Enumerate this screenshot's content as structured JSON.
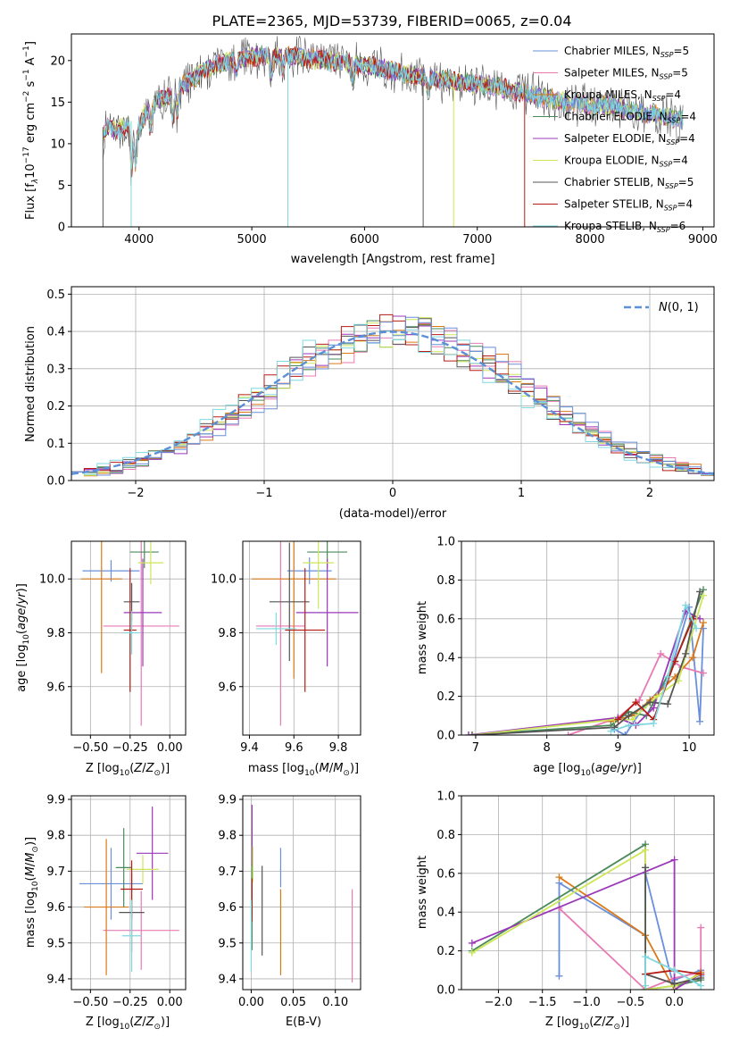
{
  "colors": {
    "series": [
      "#6a8fdb",
      "#e87ab4",
      "#d97a1a",
      "#4a8a5a",
      "#9a38b8",
      "#cde65a",
      "#555555",
      "#b51d14",
      "#7fd8e0"
    ],
    "gauss": "#5b8fd6",
    "grid": "#b0b0b0"
  },
  "figure": {
    "title": "PLATE=2365, MJD=53739, FIBERID=0065, z=0.04"
  },
  "chart_data": [
    {
      "type": "line",
      "id": "spectrum",
      "xlabel": "wavelength [Angstrom, rest frame]",
      "ylabel_parts": [
        "Flux [f",
        "λ",
        "10",
        "−17",
        " erg cm",
        "−2",
        " s",
        "−1",
        " A",
        "−1",
        "]"
      ],
      "xlim": [
        3400,
        9100
      ],
      "ylim": [
        0,
        23.2
      ],
      "xticks": [
        4000,
        5000,
        6000,
        7000,
        8000,
        9000
      ],
      "yticks": [
        0,
        5,
        10,
        15,
        20
      ],
      "grid": false,
      "legend_position": "top-right",
      "series": [
        {
          "name": "Chabrier MILES",
          "nssp": "5"
        },
        {
          "name": "Salpeter MILES",
          "nssp": "5"
        },
        {
          "name": "Kroupa MILES",
          "nssp": "4"
        },
        {
          "name": "Chabrier ELODIE",
          "nssp": "4"
        },
        {
          "name": "Salpeter ELODIE",
          "nssp": "4"
        },
        {
          "name": "Kroupa ELODIE",
          "nssp": "4"
        },
        {
          "name": "Chabrier STELIB",
          "nssp": "5"
        },
        {
          "name": "Salpeter STELIB",
          "nssp": "4"
        },
        {
          "name": "Kroupa STELIB",
          "nssp": "6"
        }
      ],
      "continuum": {
        "x": [
          3680,
          3720,
          3800,
          3900,
          3960,
          4050,
          4150,
          4300,
          4450,
          4600,
          4800,
          5000,
          5200,
          5500,
          5800,
          6100,
          6400,
          6600,
          6800,
          7000,
          7200,
          7500,
          7800,
          8000,
          8200,
          8400,
          8600,
          8750,
          8830
        ],
        "y": [
          11,
          12,
          11.5,
          12.5,
          11,
          13.5,
          15,
          16,
          17.5,
          19,
          20,
          20.5,
          20.7,
          20.3,
          19.8,
          19.2,
          18.3,
          17.8,
          17.5,
          17.2,
          16.8,
          15.8,
          15,
          14.5,
          14.6,
          13.8,
          13.4,
          13.2,
          12.8
        ]
      }
    },
    {
      "type": "line",
      "id": "residuals",
      "xlabel": "(data-model)/error",
      "ylabel": "Normed distribution",
      "xlim": [
        -2.5,
        2.5
      ],
      "ylim": [
        0,
        0.52
      ],
      "xticks": [
        -2,
        -1,
        0,
        1,
        2
      ],
      "yticks": [
        0.0,
        0.1,
        0.2,
        0.3,
        0.4,
        0.5
      ],
      "grid": true,
      "legend_position": "top-right",
      "gauss_label": "N(0, 1)",
      "gauss": {
        "mu": 0,
        "sigma": 1
      },
      "bin_width": 0.1
    },
    {
      "type": "scatter",
      "id": "age-Z",
      "xlabel": "Z [log10(Z/Z☉)]",
      "ylabel": "age  [log10(age/yr)]",
      "xlim": [
        -0.62,
        0.1
      ],
      "ylim": [
        9.42,
        10.14
      ],
      "xticks": [
        -0.5,
        -0.25,
        0.0
      ],
      "xtick_labels": [
        "−0.50",
        "−0.25",
        "0.00"
      ],
      "yticks": [
        9.6,
        9.8,
        10.0
      ],
      "grid": true,
      "points": [
        {
          "x": -0.37,
          "y": 10.03,
          "dx": 0.18,
          "dy": 0.04,
          "c": 0
        },
        {
          "x": -0.18,
          "y": 9.825,
          "dx": 0.24,
          "dy": 0.37,
          "c": 1
        },
        {
          "x": -0.43,
          "y": 10.0,
          "dx": 0.13,
          "dy": 0.35,
          "c": 2
        },
        {
          "x": -0.16,
          "y": 10.1,
          "dx": 0.09,
          "dy": 0.06,
          "c": 3
        },
        {
          "x": -0.17,
          "y": 9.875,
          "dx": 0.12,
          "dy": 0.2,
          "c": 4
        },
        {
          "x": -0.12,
          "y": 10.06,
          "dx": 0.08,
          "dy": 0.08,
          "c": 5
        },
        {
          "x": -0.24,
          "y": 9.915,
          "dx": 0.05,
          "dy": 0.07,
          "c": 6
        },
        {
          "x": -0.25,
          "y": 9.81,
          "dx": 0.04,
          "dy": 0.23,
          "c": 7
        },
        {
          "x": -0.24,
          "y": 9.8,
          "dx": 0.05,
          "dy": 0.08,
          "c": 8
        }
      ]
    },
    {
      "type": "scatter",
      "id": "age-mass",
      "xlabel": "mass [log10(M/M☉)]",
      "ylabel": "",
      "xlim": [
        9.37,
        9.9
      ],
      "ylim": [
        9.42,
        10.14
      ],
      "xticks": [
        9.4,
        9.6,
        9.8
      ],
      "yticks": [
        9.6,
        9.8,
        10.0
      ],
      "grid": true,
      "points": [
        {
          "x": 9.67,
          "y": 10.03,
          "dx": 0.1,
          "dy": 0.05,
          "c": 0
        },
        {
          "x": 9.54,
          "y": 9.825,
          "dx": 0.11,
          "dy": 0.37,
          "c": 1
        },
        {
          "x": 9.6,
          "y": 10.0,
          "dx": 0.19,
          "dy": 0.37,
          "c": 2
        },
        {
          "x": 9.75,
          "y": 10.1,
          "dx": 0.09,
          "dy": 0.06,
          "c": 3
        },
        {
          "x": 9.75,
          "y": 9.875,
          "dx": 0.14,
          "dy": 0.2,
          "c": 4
        },
        {
          "x": 9.71,
          "y": 10.06,
          "dx": 0.07,
          "dy": 0.17,
          "c": 5
        },
        {
          "x": 9.58,
          "y": 9.915,
          "dx": 0.09,
          "dy": 0.22,
          "c": 6
        },
        {
          "x": 9.65,
          "y": 9.81,
          "dx": 0.09,
          "dy": 0.23,
          "c": 7
        },
        {
          "x": 9.52,
          "y": 9.815,
          "dx": 0.09,
          "dy": 0.06,
          "c": 8
        }
      ]
    },
    {
      "type": "line",
      "id": "weight-age",
      "xlabel": "age  [log10(age/yr)]",
      "ylabel": "mass weight",
      "xlim": [
        6.8,
        10.35
      ],
      "ylim": [
        0,
        1.0
      ],
      "xticks": [
        7,
        8,
        9,
        10
      ],
      "yticks": [
        0.0,
        0.2,
        0.4,
        0.6,
        0.8,
        1.0
      ],
      "grid": true,
      "series": [
        {
          "c": 0,
          "x": [
            8.95,
            9.1,
            9.35,
            9.7,
            10.0,
            10.15,
            10.2
          ],
          "y": [
            0.03,
            0.0,
            0.14,
            0.28,
            0.66,
            0.07,
            0.55
          ]
        },
        {
          "c": 1,
          "x": [
            8.3,
            9.0,
            9.3,
            9.6,
            9.9,
            10.2
          ],
          "y": [
            0.0,
            0.09,
            0.18,
            0.42,
            0.35,
            0.32
          ]
        },
        {
          "c": 2,
          "x": [
            8.9,
            9.2,
            9.45,
            9.8,
            10.05,
            10.2
          ],
          "y": [
            0.07,
            0.1,
            0.18,
            0.3,
            0.4,
            0.58
          ]
        },
        {
          "c": 3,
          "x": [
            6.9,
            8.9,
            9.15,
            9.4,
            9.8,
            10.2
          ],
          "y": [
            0.0,
            0.05,
            0.12,
            0.1,
            0.38,
            0.75
          ]
        },
        {
          "c": 4,
          "x": [
            6.9,
            9.0,
            9.25,
            9.5,
            9.95,
            10.15
          ],
          "y": [
            0.0,
            0.09,
            0.05,
            0.14,
            0.64,
            0.6
          ]
        },
        {
          "c": 5,
          "x": [
            6.95,
            8.95,
            9.2,
            9.55,
            9.85,
            10.2
          ],
          "y": [
            0.0,
            0.08,
            0.08,
            0.2,
            0.28,
            0.72
          ]
        },
        {
          "c": 6,
          "x": [
            6.95,
            8.95,
            9.15,
            9.45,
            9.7,
            9.95,
            10.15
          ],
          "y": [
            0.0,
            0.04,
            0.1,
            0.17,
            0.16,
            0.42,
            0.74
          ]
        },
        {
          "c": 7,
          "x": [
            9.0,
            9.25,
            9.5,
            9.8,
            10.05
          ],
          "y": [
            0.08,
            0.17,
            0.08,
            0.38,
            0.6
          ]
        },
        {
          "c": 8,
          "x": [
            8.9,
            9.15,
            9.5,
            9.7,
            9.95,
            10.1
          ],
          "y": [
            0.02,
            0.05,
            0.06,
            0.3,
            0.67,
            0.55
          ]
        }
      ]
    },
    {
      "type": "scatter",
      "id": "mass-Z",
      "xlabel": "Z [log10(Z/Z☉)]",
      "ylabel": "mass [log10(M/M☉)]",
      "xlim": [
        -0.62,
        0.1
      ],
      "ylim": [
        9.37,
        9.91
      ],
      "xticks": [
        -0.5,
        -0.25,
        0.0
      ],
      "xtick_labels": [
        "−0.50",
        "−0.25",
        "0.00"
      ],
      "yticks": [
        9.4,
        9.5,
        9.6,
        9.7,
        9.8,
        9.9
      ],
      "grid": true,
      "points": [
        {
          "x": -0.37,
          "y": 9.665,
          "dx": 0.2,
          "dy": 0.1,
          "c": 0
        },
        {
          "x": -0.18,
          "y": 9.535,
          "dx": 0.24,
          "dy": 0.11,
          "c": 1
        },
        {
          "x": -0.4,
          "y": 9.6,
          "dx": 0.14,
          "dy": 0.19,
          "c": 2
        },
        {
          "x": -0.29,
          "y": 9.71,
          "dx": 0.05,
          "dy": 0.11,
          "c": 3
        },
        {
          "x": -0.11,
          "y": 9.75,
          "dx": 0.1,
          "dy": 0.13,
          "c": 4
        },
        {
          "x": -0.17,
          "y": 9.705,
          "dx": 0.1,
          "dy": 0.04,
          "c": 5
        },
        {
          "x": -0.24,
          "y": 9.585,
          "dx": 0.08,
          "dy": 0.11,
          "c": 6
        },
        {
          "x": -0.24,
          "y": 9.65,
          "dx": 0.07,
          "dy": 0.08,
          "c": 7
        },
        {
          "x": -0.24,
          "y": 9.52,
          "dx": 0.06,
          "dy": 0.1,
          "c": 8
        }
      ]
    },
    {
      "type": "scatter",
      "id": "mass-EBV",
      "xlabel": "E(B-V)",
      "ylabel": "",
      "xlim": [
        -0.01,
        0.13
      ],
      "ylim": [
        9.37,
        9.91
      ],
      "xticks": [
        0.0,
        0.05,
        0.1
      ],
      "xtick_labels": [
        "0.00",
        "0.05",
        "0.10"
      ],
      "yticks": [
        9.4,
        9.5,
        9.6,
        9.7,
        9.8,
        9.9
      ],
      "grid": true,
      "points": [
        {
          "x": 0.035,
          "y": 9.71,
          "dx": 0,
          "dy": 0.055,
          "c": 0
        },
        {
          "x": 0.12,
          "y": 9.52,
          "dx": 0,
          "dy": 0.13,
          "c": 1
        },
        {
          "x": 0.035,
          "y": 9.53,
          "dx": 0,
          "dy": 0.12,
          "c": 2
        },
        {
          "x": 0.001,
          "y": 9.6,
          "dx": 0,
          "dy": 0.12,
          "c": 3
        },
        {
          "x": 0.001,
          "y": 9.8,
          "dx": 0,
          "dy": 0.085,
          "c": 4
        },
        {
          "x": 0.002,
          "y": 9.72,
          "dx": 0,
          "dy": 0.05,
          "c": 5
        },
        {
          "x": 0.013,
          "y": 9.59,
          "dx": 0,
          "dy": 0.125,
          "c": 6
        },
        {
          "x": 0.001,
          "y": 9.62,
          "dx": 0,
          "dy": 0.06,
          "c": 7
        },
        {
          "x": 0.0,
          "y": 9.52,
          "dx": 0,
          "dy": 0.1,
          "c": 8
        }
      ]
    },
    {
      "type": "line",
      "id": "weight-Z",
      "xlabel": "Z [log10(Z/Z☉)]",
      "ylabel": "mass weight",
      "xlim": [
        -2.42,
        0.45
      ],
      "ylim": [
        0,
        1.0
      ],
      "xticks": [
        -2.0,
        -1.5,
        -1.0,
        -0.5,
        0.0
      ],
      "xtick_labels": [
        "−2.0",
        "−1.5",
        "−1.0",
        "−0.5",
        "0.0"
      ],
      "yticks": [
        0.0,
        0.2,
        0.4,
        0.6,
        0.8,
        1.0
      ],
      "grid": true,
      "series": [
        {
          "c": 0,
          "x": [
            -1.31,
            -1.31,
            -0.33,
            -0.33,
            0.0,
            0.0,
            0.3,
            0.3
          ],
          "y": [
            0.07,
            0.55,
            0.28,
            0.6,
            0.0,
            0.05,
            0.1,
            0.07
          ]
        },
        {
          "c": 1,
          "x": [
            -1.31,
            -0.33,
            0.0,
            0.3,
            0.3
          ],
          "y": [
            0.42,
            0.0,
            0.06,
            0.09,
            0.32
          ]
        },
        {
          "c": 2,
          "x": [
            -1.31,
            -0.33,
            0.0,
            0.3
          ],
          "y": [
            0.58,
            0.28,
            0.0,
            0.09
          ]
        },
        {
          "c": 3,
          "x": [
            -2.3,
            -0.33,
            -0.33,
            0.0,
            0.3
          ],
          "y": [
            0.2,
            0.75,
            0.0,
            0.02,
            0.05
          ]
        },
        {
          "c": 4,
          "x": [
            -2.3,
            0.0,
            0.0,
            0.3
          ],
          "y": [
            0.24,
            0.67,
            0.0,
            0.08
          ]
        },
        {
          "c": 5,
          "x": [
            -2.3,
            -0.33,
            -0.33,
            0.0,
            0.3
          ],
          "y": [
            0.19,
            0.72,
            0.0,
            0.02,
            0.08
          ]
        },
        {
          "c": 6,
          "x": [
            -0.33,
            -0.33,
            0.0,
            0.3
          ],
          "y": [
            0.63,
            0.08,
            0.03,
            0.06
          ]
        },
        {
          "c": 7,
          "x": [
            -0.33,
            0.0,
            0.3
          ],
          "y": [
            0.08,
            0.1,
            0.08
          ]
        },
        {
          "c": 8,
          "x": [
            -0.33,
            -0.33,
            0.0,
            0.3
          ],
          "y": [
            0.02,
            0.17,
            0.1,
            0.02
          ]
        }
      ]
    }
  ]
}
